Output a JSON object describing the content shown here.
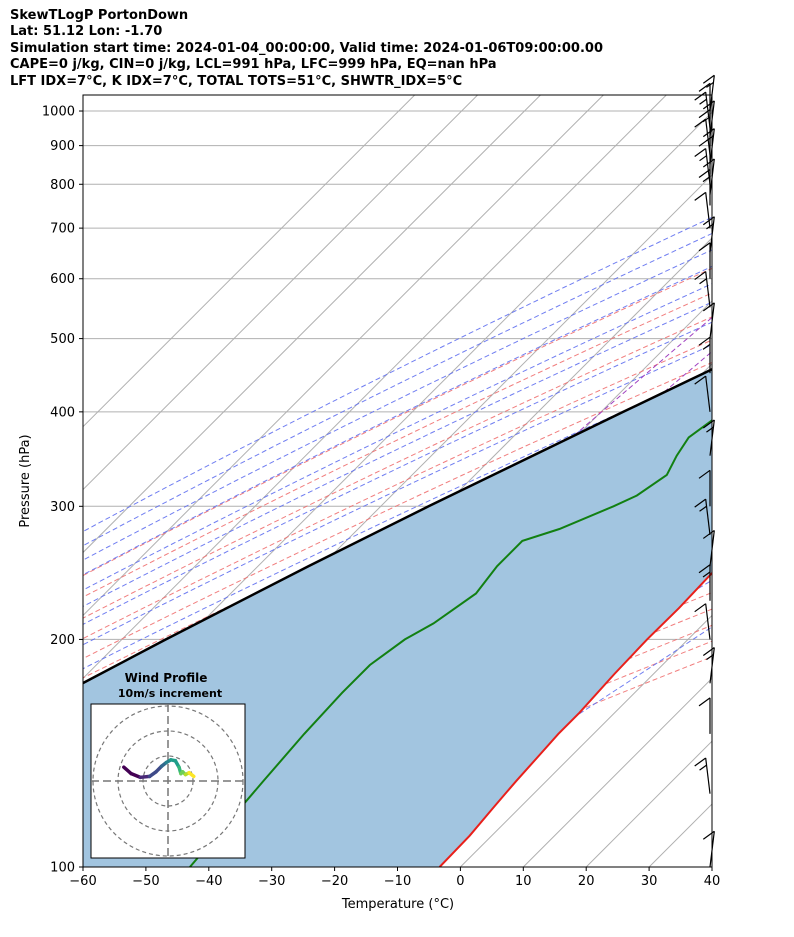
{
  "header": {
    "line1": "SkewTLogP PortonDown",
    "line2": "Lat: 51.12   Lon: -1.70",
    "line3": "Simulation start time: 2024-01-04_00:00:00, Valid time: 2024-01-06T09:00:00.00",
    "line4": "CAPE=0 j/kg, CIN=0 j/kg, LCL=991 hPa, LFC=999 hPa, EQ=nan hPa",
    "line5": "LFT IDX=7°C, K IDX=7°C, TOTAL TOTS=51°C, SHWTR_IDX=5°C"
  },
  "chart_data": {
    "type": "line",
    "subtype": "skew-T log-P diagram",
    "xlabel": "Temperature (°C)",
    "ylabel": "Pressure (hPa)",
    "xlim": [
      -60,
      40
    ],
    "ylim": [
      1050,
      100
    ],
    "y_scale": "log",
    "x_ticks": [
      -60,
      -50,
      -40,
      -30,
      -20,
      -10,
      0,
      10,
      20,
      30,
      40
    ],
    "x_tick_labels": [
      "−60",
      "−50",
      "−40",
      "−30",
      "−20",
      "−10",
      "0",
      "10",
      "20",
      "30",
      "40"
    ],
    "y_ticks": [
      1000,
      900,
      800,
      700,
      600,
      500,
      400,
      300,
      200,
      100
    ],
    "y_tick_labels": [
      "1000",
      "900",
      "800",
      "700",
      "600",
      "500",
      "400",
      "300",
      "200",
      "100"
    ],
    "grid": true,
    "shaded_area": "between parcel profile and temperature profile",
    "colors": {
      "temperature": "#e8201b",
      "dewpoint": "#128012",
      "parcel": "#000000",
      "shading": "#a2c5e0",
      "dry_adiabats": "#f07070",
      "moist_adiabats": "#6070f0",
      "mixing_ratio": "#a040c0",
      "isotherms": "#b0b0b0"
    },
    "series": [
      {
        "key": "temperature",
        "points": [
          [
            1000,
            3.3
          ],
          [
            985,
            4.2
          ],
          [
            970,
            6.0
          ],
          [
            950,
            5.4
          ],
          [
            900,
            4.1
          ],
          [
            850,
            2.8
          ],
          [
            800,
            1.8
          ],
          [
            750,
            1.0
          ],
          [
            700,
            -0.5
          ],
          [
            650,
            -2.2
          ],
          [
            600,
            -4.2
          ],
          [
            550,
            -6.5
          ],
          [
            500,
            -8.5
          ],
          [
            450,
            -10.6
          ],
          [
            430,
            -11.5
          ],
          [
            400,
            -12.3
          ],
          [
            370,
            -12.6
          ],
          [
            350,
            -12.4
          ],
          [
            330,
            -11.8
          ],
          [
            300,
            -10.3
          ],
          [
            280,
            -8.5
          ],
          [
            250,
            -6.8
          ],
          [
            220,
            -6.4
          ],
          [
            200,
            -6.5
          ],
          [
            180,
            -6.2
          ],
          [
            160,
            -5.6
          ],
          [
            150,
            -5.6
          ],
          [
            140,
            -5.2
          ],
          [
            130,
            -4.8
          ],
          [
            120,
            -4.2
          ],
          [
            110,
            -3.5
          ],
          [
            100,
            -3.3
          ]
        ]
      },
      {
        "key": "dewpoint",
        "points": [
          [
            1000,
            2.4
          ],
          [
            970,
            2.3
          ],
          [
            950,
            1.0
          ],
          [
            900,
            -1.4
          ],
          [
            850,
            -2.1
          ],
          [
            800,
            -3.9
          ],
          [
            750,
            -7.4
          ],
          [
            700,
            -11.4
          ],
          [
            650,
            -15.8
          ],
          [
            620,
            -20.5
          ],
          [
            590,
            -27.0
          ],
          [
            560,
            -31.0
          ],
          [
            500,
            -28.0
          ],
          [
            450,
            -28.0
          ],
          [
            420,
            -28.0
          ],
          [
            390,
            -31.0
          ],
          [
            370,
            -32.0
          ],
          [
            350,
            -31.0
          ],
          [
            330,
            -29.5
          ],
          [
            310,
            -31.0
          ],
          [
            300,
            -33.0
          ],
          [
            280,
            -38.0
          ],
          [
            270,
            -42.0
          ],
          [
            250,
            -42.0
          ],
          [
            230,
            -41.0
          ],
          [
            210,
            -43.0
          ],
          [
            200,
            -45.0
          ],
          [
            185,
            -46.5
          ],
          [
            170,
            -46.5
          ],
          [
            150,
            -46.0
          ],
          [
            130,
            -45.0
          ],
          [
            100,
            -43.0
          ]
        ]
      },
      {
        "key": "parcel",
        "points": [
          [
            1000,
            3.3
          ],
          [
            950,
            0.5
          ],
          [
            900,
            -2.3
          ],
          [
            850,
            -5.2
          ],
          [
            800,
            -8.3
          ],
          [
            750,
            -11.7
          ],
          [
            700,
            -15.4
          ],
          [
            650,
            -19.4
          ],
          [
            600,
            -23.8
          ],
          [
            550,
            -28.6
          ],
          [
            500,
            -33.9
          ],
          [
            450,
            -39.8
          ],
          [
            400,
            -46.5
          ],
          [
            350,
            -53.9
          ],
          [
            300,
            -62.4
          ],
          [
            250,
            -72.0
          ],
          [
            200,
            -83.0
          ],
          [
            150,
            -96.5
          ],
          [
            125,
            -105.0
          ],
          [
            100,
            -114.0
          ]
        ]
      }
    ],
    "wind_barbs": {
      "x_position": "right edge",
      "pressures_hPa": [
        1000,
        975,
        950,
        925,
        900,
        875,
        850,
        825,
        800,
        775,
        750,
        700,
        650,
        600,
        550,
        500,
        450,
        400,
        350,
        300,
        275,
        250,
        225,
        200,
        175,
        150,
        125,
        100
      ]
    },
    "inset": {
      "title": "Wind Profile",
      "subtitle": "10m/s increment",
      "type": "hodograph",
      "hodograph_points": [
        [
          1.5,
          -4.8
        ],
        [
          0.8,
          -4.0
        ],
        [
          0.4,
          -3.0
        ],
        [
          0.5,
          -2.0
        ],
        [
          1.0,
          -1.3
        ],
        [
          1.6,
          -0.7
        ],
        [
          2.0,
          -0.2
        ],
        [
          2.3,
          0.3
        ],
        [
          2.2,
          0.8
        ],
        [
          1.5,
          1.2
        ],
        [
          0.8,
          1.4
        ],
        [
          1.0,
          1.6
        ],
        [
          0.7,
          1.9
        ],
        [
          0.9,
          2.3
        ],
        [
          0.5,
          2.8
        ]
      ]
    }
  }
}
